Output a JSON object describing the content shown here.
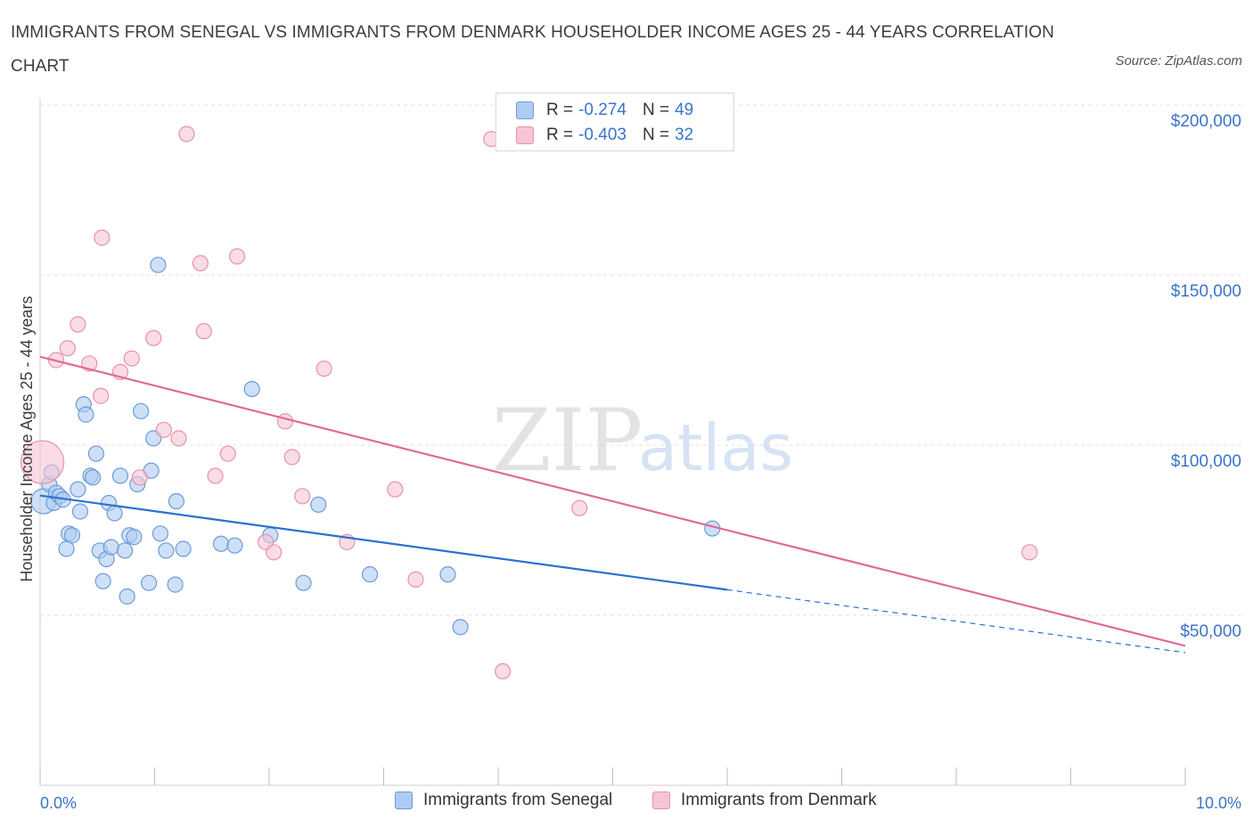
{
  "title": "IMMIGRANTS FROM SENEGAL VS IMMIGRANTS FROM DENMARK HOUSEHOLDER INCOME AGES 25 - 44 YEARS CORRELATION CHART",
  "source": "Source: ZipAtlas.com",
  "watermark": {
    "zip": "ZIP",
    "atlas": "atlas"
  },
  "legend": {
    "r_label": "R =",
    "n_label": "N =",
    "rows": [
      {
        "name": "Immigrants from Senegal",
        "r": "-0.274",
        "n": "49"
      },
      {
        "name": "Immigrants from Denmark",
        "r": "-0.403",
        "n": "32"
      }
    ]
  },
  "colors": {
    "senegal_fill": "#aecbf2",
    "senegal_stroke": "#6b9bd8",
    "senegal_line": "#2d6fd0",
    "denmark_fill": "#f6c4d4",
    "denmark_stroke": "#e892ad",
    "denmark_line": "#e06a94",
    "tick_text": "#3a74c8",
    "grid": "#e2e2e2"
  },
  "chart_data": {
    "type": "scatter",
    "title": "IMMIGRANTS FROM SENEGAL VS IMMIGRANTS FROM DENMARK HOUSEHOLDER INCOME AGES 25 - 44 YEARS CORRELATION CHART",
    "xlabel": "",
    "ylabel": "Householder Income Ages 25 - 44 years",
    "xlim": [
      0,
      10
    ],
    "ylim": [
      0,
      200000
    ],
    "x_tick_labels": [
      "0.0%",
      "10.0%"
    ],
    "y_ticks": [
      50000,
      100000,
      150000,
      200000
    ],
    "y_tick_labels": [
      "$50,000",
      "$100,000",
      "$150,000",
      "$200,000"
    ],
    "grid": true,
    "legend_position": "top-center",
    "series": [
      {
        "name": "Immigrants from Senegal",
        "r": -0.274,
        "n": 49,
        "trend": {
          "x_start": 0.0,
          "y_start": 85200,
          "x_end": 6.0,
          "y_end": 57500,
          "dashed_to_x": 10.0,
          "dashed_y_end": 39000
        },
        "points": [
          [
            0.03,
            83500
          ],
          [
            0.08,
            88500
          ],
          [
            0.1,
            92000
          ],
          [
            0.12,
            83000
          ],
          [
            0.14,
            86000
          ],
          [
            0.17,
            85000
          ],
          [
            0.2,
            84000
          ],
          [
            0.23,
            69500
          ],
          [
            0.25,
            74000
          ],
          [
            0.28,
            73500
          ],
          [
            0.33,
            87000
          ],
          [
            0.35,
            80500
          ],
          [
            0.38,
            112000
          ],
          [
            0.4,
            109000
          ],
          [
            0.44,
            91000
          ],
          [
            0.46,
            90500
          ],
          [
            0.49,
            97500
          ],
          [
            0.52,
            69000
          ],
          [
            0.55,
            60000
          ],
          [
            0.58,
            66500
          ],
          [
            0.6,
            83000
          ],
          [
            0.62,
            70000
          ],
          [
            0.65,
            80000
          ],
          [
            0.7,
            91000
          ],
          [
            0.74,
            69000
          ],
          [
            0.76,
            55500
          ],
          [
            0.78,
            73500
          ],
          [
            0.82,
            73000
          ],
          [
            0.85,
            88500
          ],
          [
            0.88,
            110000
          ],
          [
            0.95,
            59500
          ],
          [
            0.97,
            92500
          ],
          [
            0.99,
            102000
          ],
          [
            1.03,
            153000
          ],
          [
            1.05,
            74000
          ],
          [
            1.1,
            69000
          ],
          [
            1.18,
            59000
          ],
          [
            1.19,
            83500
          ],
          [
            1.25,
            69500
          ],
          [
            1.58,
            71000
          ],
          [
            1.7,
            70500
          ],
          [
            1.85,
            116500
          ],
          [
            2.01,
            73500
          ],
          [
            2.3,
            59500
          ],
          [
            2.43,
            82500
          ],
          [
            2.88,
            62000
          ],
          [
            3.56,
            62000
          ],
          [
            3.67,
            46500
          ],
          [
            5.87,
            75500
          ]
        ]
      },
      {
        "name": "Immigrants from Denmark",
        "r": -0.403,
        "n": 32,
        "trend": {
          "x_start": 0.0,
          "y_start": 126000,
          "x_end": 10.0,
          "y_end": 41000
        },
        "points": [
          [
            0.02,
            95000
          ],
          [
            0.14,
            125000
          ],
          [
            0.24,
            128500
          ],
          [
            0.33,
            135500
          ],
          [
            0.43,
            124000
          ],
          [
            0.53,
            114500
          ],
          [
            0.54,
            161000
          ],
          [
            0.7,
            121500
          ],
          [
            0.8,
            125500
          ],
          [
            0.87,
            90500
          ],
          [
            0.99,
            131500
          ],
          [
            1.08,
            104500
          ],
          [
            1.21,
            102000
          ],
          [
            1.28,
            191500
          ],
          [
            1.4,
            153500
          ],
          [
            1.43,
            133500
          ],
          [
            1.53,
            91000
          ],
          [
            1.64,
            97500
          ],
          [
            1.72,
            155500
          ],
          [
            1.97,
            71500
          ],
          [
            2.04,
            68500
          ],
          [
            2.14,
            107000
          ],
          [
            2.2,
            96500
          ],
          [
            2.29,
            85000
          ],
          [
            2.48,
            122500
          ],
          [
            2.68,
            71500
          ],
          [
            3.1,
            87000
          ],
          [
            3.28,
            60500
          ],
          [
            3.94,
            190000
          ],
          [
            4.04,
            33500
          ],
          [
            4.71,
            81500
          ],
          [
            8.64,
            68500
          ]
        ]
      }
    ]
  }
}
